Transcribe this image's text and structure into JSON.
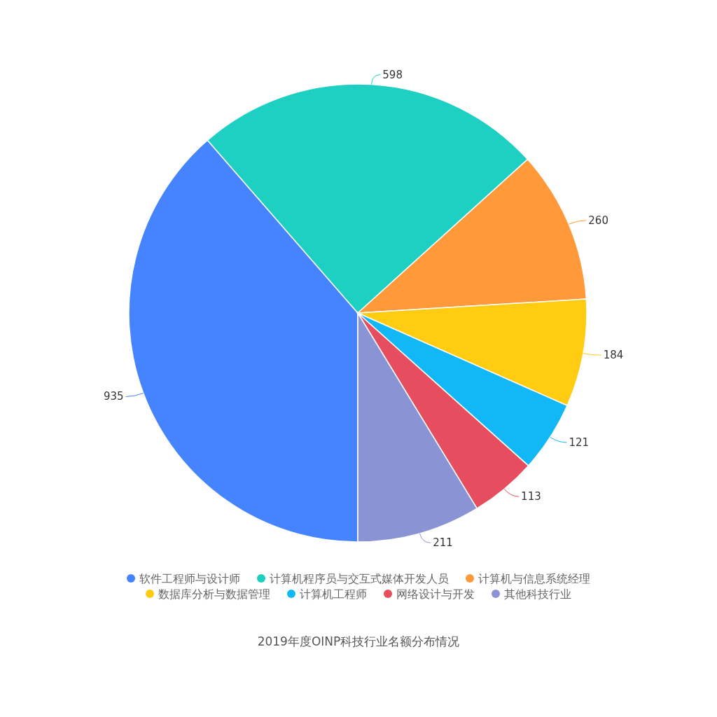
{
  "chart_data": {
    "type": "pie",
    "title": "2019年度OINP科技行业名额分布情况",
    "categories": [
      "软件工程师与设计师",
      "计算机程序员与交互式媒体开发人员",
      "计算机与信息系统经理",
      "数据库分析与数据管理",
      "计算机工程师",
      "网络设计与开发",
      "其他科技行业"
    ],
    "values": [
      935,
      598,
      260,
      184,
      121,
      113,
      211
    ],
    "colors": [
      "#4684ff",
      "#1dd0c1",
      "#ff993a",
      "#ffcc12",
      "#12b8f5",
      "#e64d5e",
      "#8a94d4"
    ],
    "data_labels": true,
    "legend": "bottom"
  }
}
